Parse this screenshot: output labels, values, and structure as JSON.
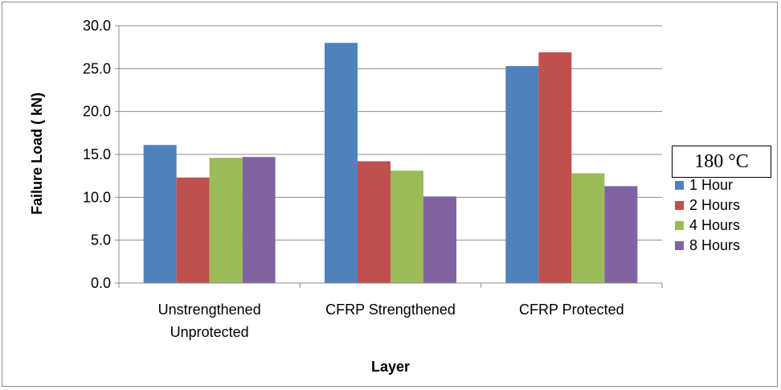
{
  "chart_data": {
    "type": "bar",
    "xlabel": "Layer",
    "ylabel": "Failure Load ( kN)",
    "ylim": [
      0,
      30
    ],
    "yticks": [
      "0.0",
      "5.0",
      "10.0",
      "15.0",
      "20.0",
      "25.0",
      "30.0"
    ],
    "grid": true,
    "legend_title": "180 °C",
    "legend_position": "right",
    "categories": [
      [
        "Unstrengthened",
        "Unprotected"
      ],
      [
        "CFRP Strengthened"
      ],
      [
        "CFRP Protected"
      ]
    ],
    "series": [
      {
        "name": "1 Hour",
        "color": "#4f81bd",
        "values": [
          16.1,
          28.0,
          25.3
        ]
      },
      {
        "name": "2 Hours",
        "color": "#c0504d",
        "values": [
          12.3,
          14.2,
          26.9
        ]
      },
      {
        "name": "4 Hours",
        "color": "#9bbb59",
        "values": [
          14.6,
          13.1,
          12.8
        ]
      },
      {
        "name": "8 Hours",
        "color": "#8064a2",
        "values": [
          14.7,
          10.1,
          11.3
        ]
      }
    ]
  }
}
